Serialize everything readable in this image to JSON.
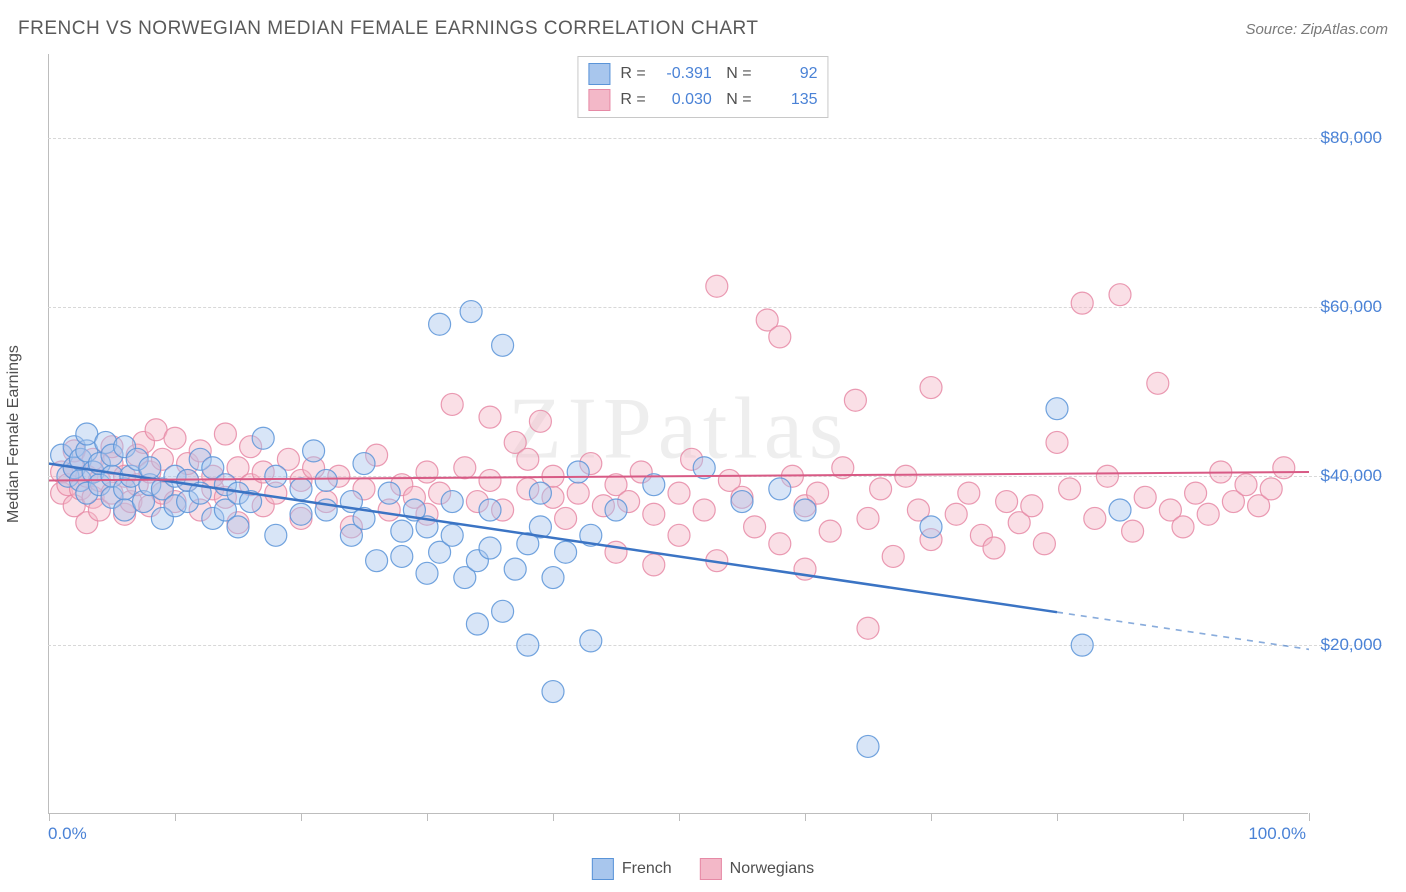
{
  "header": {
    "title": "FRENCH VS NORWEGIAN MEDIAN FEMALE EARNINGS CORRELATION CHART",
    "source": "Source: ZipAtlas.com"
  },
  "watermark": "ZIPatlas",
  "chart": {
    "type": "scatter",
    "y_axis_label": "Median Female Earnings",
    "background_color": "#ffffff",
    "grid_color": "#d8d8d8",
    "axis_color": "#bdbdbd",
    "tick_label_color": "#4a82d6",
    "axis_label_color": "#505050",
    "xlim": [
      0,
      100
    ],
    "ylim": [
      0,
      90000
    ],
    "x_ticks": [
      0,
      10,
      20,
      30,
      40,
      50,
      60,
      70,
      80,
      90,
      100
    ],
    "y_gridlines": [
      20000,
      40000,
      60000,
      80000
    ],
    "y_tick_labels": [
      "$20,000",
      "$40,000",
      "$60,000",
      "$80,000"
    ],
    "x_min_label": "0.0%",
    "x_max_label": "100.0%",
    "point_radius": 11,
    "point_opacity": 0.45,
    "point_stroke_opacity": 0.85,
    "series": [
      {
        "name": "French",
        "fill": "#a8c6ed",
        "stroke": "#5a94d8",
        "trend": {
          "x1": 0,
          "y1": 41500,
          "x2": 100,
          "y2": 19500,
          "solid_until_x": 80,
          "stroke": "#3b74c4",
          "width": 2.5
        },
        "stats": {
          "r": "-0.391",
          "n": "92"
        },
        "points": [
          [
            1,
            42500
          ],
          [
            1.5,
            40000
          ],
          [
            2,
            41000
          ],
          [
            2,
            43500
          ],
          [
            2.5,
            39500
          ],
          [
            2.5,
            42000
          ],
          [
            3,
            38000
          ],
          [
            3,
            43000
          ],
          [
            3,
            45000
          ],
          [
            3.5,
            40500
          ],
          [
            4,
            39000
          ],
          [
            4,
            41500
          ],
          [
            4.5,
            44000
          ],
          [
            5,
            37500
          ],
          [
            5,
            40000
          ],
          [
            5,
            42500
          ],
          [
            6,
            38500
          ],
          [
            6,
            36000
          ],
          [
            6,
            43500
          ],
          [
            6.5,
            40000
          ],
          [
            7,
            42000
          ],
          [
            7.5,
            37000
          ],
          [
            8,
            39000
          ],
          [
            8,
            41000
          ],
          [
            9,
            35000
          ],
          [
            9,
            38500
          ],
          [
            10,
            40000
          ],
          [
            10,
            36500
          ],
          [
            11,
            37000
          ],
          [
            11,
            39500
          ],
          [
            12,
            38000
          ],
          [
            12,
            42000
          ],
          [
            13,
            35000
          ],
          [
            13,
            41000
          ],
          [
            14,
            36000
          ],
          [
            14,
            39000
          ],
          [
            15,
            34000
          ],
          [
            15,
            38000
          ],
          [
            16,
            37000
          ],
          [
            17,
            44500
          ],
          [
            18,
            40000
          ],
          [
            18,
            33000
          ],
          [
            20,
            38500
          ],
          [
            20,
            35500
          ],
          [
            21,
            43000
          ],
          [
            22,
            36000
          ],
          [
            22,
            39500
          ],
          [
            24,
            33000
          ],
          [
            24,
            37000
          ],
          [
            25,
            41500
          ],
          [
            25,
            35000
          ],
          [
            26,
            30000
          ],
          [
            27,
            38000
          ],
          [
            28,
            33500
          ],
          [
            28,
            30500
          ],
          [
            29,
            36000
          ],
          [
            30,
            34000
          ],
          [
            30,
            28500
          ],
          [
            31,
            31000
          ],
          [
            31,
            58000
          ],
          [
            32,
            33000
          ],
          [
            32,
            37000
          ],
          [
            33,
            28000
          ],
          [
            33.5,
            59500
          ],
          [
            34,
            30000
          ],
          [
            34,
            22500
          ],
          [
            35,
            31500
          ],
          [
            35,
            36000
          ],
          [
            36,
            24000
          ],
          [
            36,
            55500
          ],
          [
            37,
            29000
          ],
          [
            38,
            32000
          ],
          [
            38,
            20000
          ],
          [
            39,
            34000
          ],
          [
            39,
            38000
          ],
          [
            40,
            28000
          ],
          [
            40,
            14500
          ],
          [
            41,
            31000
          ],
          [
            42,
            40500
          ],
          [
            43,
            20500
          ],
          [
            43,
            33000
          ],
          [
            45,
            36000
          ],
          [
            48,
            39000
          ],
          [
            52,
            41000
          ],
          [
            55,
            37000
          ],
          [
            58,
            38500
          ],
          [
            60,
            36000
          ],
          [
            65,
            8000
          ],
          [
            70,
            34000
          ],
          [
            80,
            48000
          ],
          [
            82,
            20000
          ],
          [
            85,
            36000
          ]
        ]
      },
      {
        "name": "Norwegians",
        "fill": "#f3b8c8",
        "stroke": "#e68aa6",
        "trend": {
          "x1": 0,
          "y1": 39500,
          "x2": 100,
          "y2": 40500,
          "solid_until_x": 100,
          "stroke": "#d85a85",
          "width": 2
        },
        "stats": {
          "r": "0.030",
          "n": "135"
        },
        "points": [
          [
            1,
            38000
          ],
          [
            1,
            40500
          ],
          [
            1.5,
            39000
          ],
          [
            2,
            36500
          ],
          [
            2,
            41000
          ],
          [
            2,
            43000
          ],
          [
            2.5,
            38500
          ],
          [
            3,
            34500
          ],
          [
            3,
            40000
          ],
          [
            3.5,
            37500
          ],
          [
            3.5,
            42000
          ],
          [
            4,
            39500
          ],
          [
            4,
            36000
          ],
          [
            5,
            41500
          ],
          [
            5,
            38000
          ],
          [
            5,
            43500
          ],
          [
            6,
            35500
          ],
          [
            6,
            40000
          ],
          [
            6.5,
            37000
          ],
          [
            7,
            42500
          ],
          [
            7,
            39000
          ],
          [
            7.5,
            44000
          ],
          [
            8,
            36500
          ],
          [
            8,
            40500
          ],
          [
            8.5,
            45500
          ],
          [
            9,
            38000
          ],
          [
            9,
            42000
          ],
          [
            10,
            37000
          ],
          [
            10,
            44500
          ],
          [
            11,
            39500
          ],
          [
            11,
            41500
          ],
          [
            12,
            36000
          ],
          [
            12,
            43000
          ],
          [
            13,
            38500
          ],
          [
            13,
            40000
          ],
          [
            14,
            45000
          ],
          [
            14,
            37500
          ],
          [
            15,
            41000
          ],
          [
            15,
            34500
          ],
          [
            16,
            39000
          ],
          [
            16,
            43500
          ],
          [
            17,
            36500
          ],
          [
            17,
            40500
          ],
          [
            18,
            38000
          ],
          [
            19,
            42000
          ],
          [
            20,
            35000
          ],
          [
            20,
            39500
          ],
          [
            21,
            41000
          ],
          [
            22,
            37000
          ],
          [
            23,
            40000
          ],
          [
            24,
            34000
          ],
          [
            25,
            38500
          ],
          [
            26,
            42500
          ],
          [
            27,
            36000
          ],
          [
            28,
            39000
          ],
          [
            29,
            37500
          ],
          [
            30,
            40500
          ],
          [
            30,
            35500
          ],
          [
            31,
            38000
          ],
          [
            32,
            48500
          ],
          [
            33,
            41000
          ],
          [
            34,
            37000
          ],
          [
            35,
            47000
          ],
          [
            35,
            39500
          ],
          [
            36,
            36000
          ],
          [
            37,
            44000
          ],
          [
            38,
            38500
          ],
          [
            38,
            42000
          ],
          [
            39,
            46500
          ],
          [
            40,
            37500
          ],
          [
            40,
            40000
          ],
          [
            41,
            35000
          ],
          [
            42,
            38000
          ],
          [
            43,
            41500
          ],
          [
            44,
            36500
          ],
          [
            45,
            39000
          ],
          [
            45,
            31000
          ],
          [
            46,
            37000
          ],
          [
            47,
            40500
          ],
          [
            48,
            29500
          ],
          [
            48,
            35500
          ],
          [
            50,
            38000
          ],
          [
            50,
            33000
          ],
          [
            51,
            42000
          ],
          [
            52,
            36000
          ],
          [
            53,
            62500
          ],
          [
            53,
            30000
          ],
          [
            54,
            39500
          ],
          [
            55,
            37500
          ],
          [
            56,
            34000
          ],
          [
            57,
            58500
          ],
          [
            58,
            56500
          ],
          [
            58,
            32000
          ],
          [
            59,
            40000
          ],
          [
            60,
            36500
          ],
          [
            60,
            29000
          ],
          [
            61,
            38000
          ],
          [
            62,
            33500
          ],
          [
            63,
            41000
          ],
          [
            64,
            49000
          ],
          [
            65,
            35000
          ],
          [
            65,
            22000
          ],
          [
            66,
            38500
          ],
          [
            67,
            30500
          ],
          [
            68,
            40000
          ],
          [
            69,
            36000
          ],
          [
            70,
            32500
          ],
          [
            70,
            50500
          ],
          [
            72,
            35500
          ],
          [
            73,
            38000
          ],
          [
            74,
            33000
          ],
          [
            75,
            31500
          ],
          [
            76,
            37000
          ],
          [
            77,
            34500
          ],
          [
            78,
            36500
          ],
          [
            79,
            32000
          ],
          [
            80,
            44000
          ],
          [
            81,
            38500
          ],
          [
            82,
            60500
          ],
          [
            83,
            35000
          ],
          [
            84,
            40000
          ],
          [
            85,
            61500
          ],
          [
            86,
            33500
          ],
          [
            87,
            37500
          ],
          [
            88,
            51000
          ],
          [
            89,
            36000
          ],
          [
            90,
            34000
          ],
          [
            91,
            38000
          ],
          [
            92,
            35500
          ],
          [
            93,
            40500
          ],
          [
            94,
            37000
          ],
          [
            95,
            39000
          ],
          [
            96,
            36500
          ],
          [
            97,
            38500
          ],
          [
            98,
            41000
          ]
        ]
      }
    ]
  },
  "legend": {
    "items": [
      {
        "label": "French",
        "fill": "#a8c6ed",
        "stroke": "#5a94d8"
      },
      {
        "label": "Norwegians",
        "fill": "#f3b8c8",
        "stroke": "#e68aa6"
      }
    ]
  }
}
